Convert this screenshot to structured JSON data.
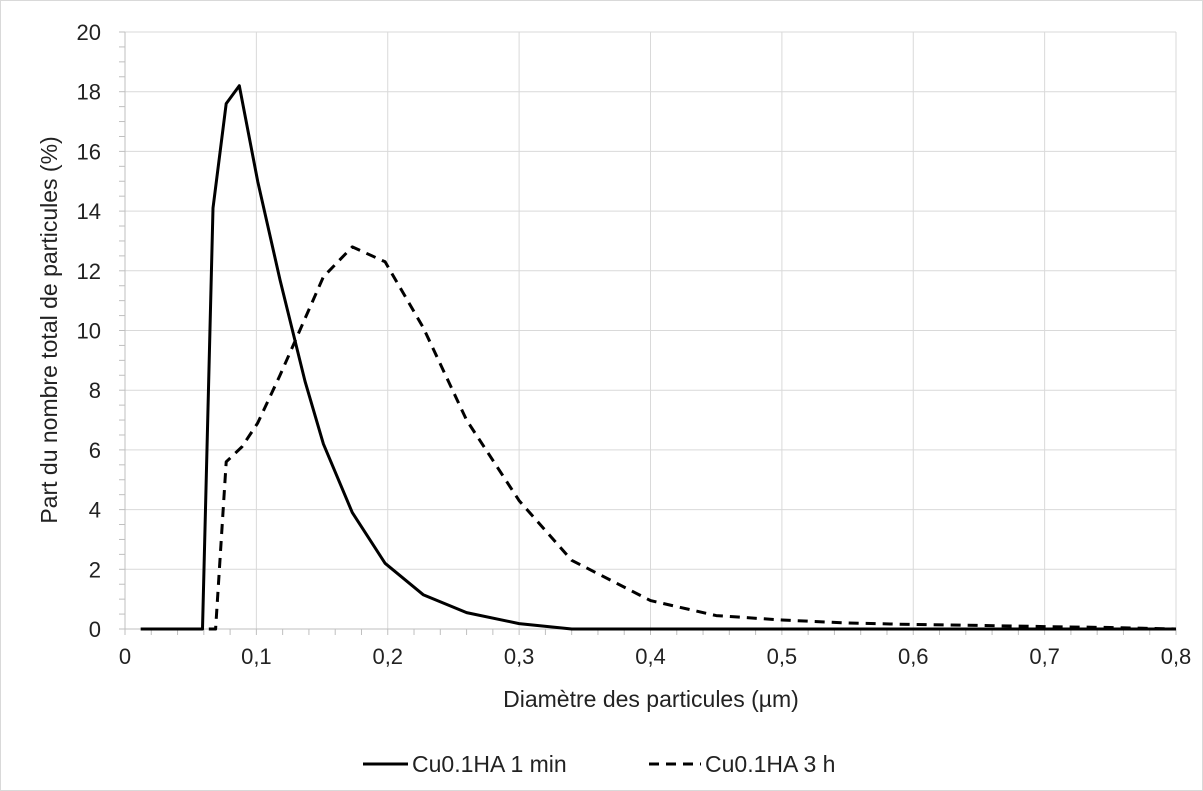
{
  "chart_data": {
    "type": "line",
    "title": "",
    "xlabel": "Diamètre des particules (µm)",
    "ylabel": "Part du nombre total de particules (%)",
    "xlim": [
      0,
      0.8
    ],
    "ylim": [
      0,
      20
    ],
    "x_ticks": [
      0,
      0.1,
      0.2,
      0.3,
      0.4,
      0.5,
      0.6,
      0.7,
      0.8
    ],
    "x_tick_labels": [
      "0",
      "0,1",
      "0,2",
      "0,3",
      "0,4",
      "0,5",
      "0,6",
      "0,7",
      "0,8"
    ],
    "y_ticks": [
      0,
      2,
      4,
      6,
      8,
      10,
      12,
      14,
      16,
      18,
      20
    ],
    "y_tick_labels": [
      "0",
      "2",
      "4",
      "6",
      "8",
      "10",
      "12",
      "14",
      "16",
      "18",
      "20"
    ],
    "grid": true,
    "legend_position": "bottom",
    "series": [
      {
        "name": "Cu0.1HA 1 min",
        "line_style": "solid",
        "color": "#000000",
        "points": [
          [
            0.012,
            0
          ],
          [
            0.059,
            0
          ],
          [
            0.067,
            14.1
          ],
          [
            0.077,
            17.6
          ],
          [
            0.087,
            18.2
          ],
          [
            0.101,
            15.0
          ],
          [
            0.118,
            11.7
          ],
          [
            0.137,
            8.3
          ],
          [
            0.151,
            6.2
          ],
          [
            0.173,
            3.9
          ],
          [
            0.198,
            2.2
          ],
          [
            0.227,
            1.15
          ],
          [
            0.26,
            0.55
          ],
          [
            0.3,
            0.18
          ],
          [
            0.34,
            0
          ],
          [
            0.8,
            0
          ]
        ]
      },
      {
        "name": "Cu0.1HA 3 h",
        "line_style": "dashed",
        "color": "#000000",
        "points": [
          [
            0.012,
            0
          ],
          [
            0.069,
            0
          ],
          [
            0.077,
            5.6
          ],
          [
            0.089,
            6.1
          ],
          [
            0.101,
            6.9
          ],
          [
            0.118,
            8.5
          ],
          [
            0.137,
            10.4
          ],
          [
            0.151,
            11.8
          ],
          [
            0.173,
            12.8
          ],
          [
            0.198,
            12.3
          ],
          [
            0.227,
            10.1
          ],
          [
            0.26,
            7.0
          ],
          [
            0.3,
            4.3
          ],
          [
            0.34,
            2.3
          ],
          [
            0.4,
            0.95
          ],
          [
            0.45,
            0.45
          ],
          [
            0.5,
            0.3
          ],
          [
            0.55,
            0.2
          ],
          [
            0.6,
            0.15
          ],
          [
            0.65,
            0.12
          ],
          [
            0.7,
            0.08
          ],
          [
            0.75,
            0.05
          ],
          [
            0.8,
            0
          ]
        ]
      }
    ]
  }
}
